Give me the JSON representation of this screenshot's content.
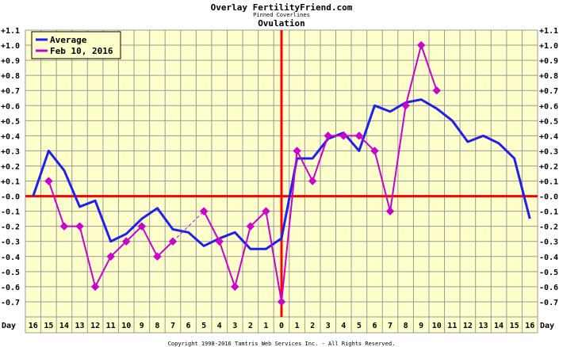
{
  "chart_data": {
    "type": "line",
    "title": "Overlay FertilityFriend.com",
    "subtitle": "Pinned Coverlines",
    "subtitle2": "Ovulation",
    "xlabel": "Day",
    "x_tick_labels": [
      "16",
      "15",
      "14",
      "13",
      "12",
      "11",
      "10",
      "9",
      "8",
      "7",
      "6",
      "5",
      "4",
      "3",
      "2",
      "1",
      "0",
      "1",
      "2",
      "3",
      "4",
      "5",
      "6",
      "7",
      "8",
      "9",
      "10",
      "11",
      "12",
      "13",
      "14",
      "15",
      "16"
    ],
    "x": [
      -16,
      -15,
      -14,
      -13,
      -12,
      -11,
      -10,
      -9,
      -8,
      -7,
      -6,
      -5,
      -4,
      -3,
      -2,
      -1,
      0,
      1,
      2,
      3,
      4,
      5,
      6,
      7,
      8,
      9,
      10,
      11,
      12,
      13,
      14,
      15,
      16
    ],
    "y_ticks": [
      "+1.1",
      "+1.0",
      "+0.9",
      "+0.8",
      "+0.7",
      "+0.6",
      "+0.5",
      "+0.4",
      "+0.3",
      "+0.2",
      "+0.1",
      "-0.0",
      "-0.1",
      "-0.2",
      "-0.3",
      "-0.4",
      "-0.5",
      "-0.6",
      "-0.7"
    ],
    "ylim": [
      -0.8,
      1.1
    ],
    "grid": true,
    "legend_position": "top-left",
    "reference_lines": {
      "horizontal": 0.0,
      "vertical": 0,
      "color": "#ff0000"
    },
    "series": [
      {
        "name": "Average",
        "color": "#2020ee",
        "markers": false,
        "values": [
          0.0,
          0.3,
          0.17,
          -0.07,
          -0.03,
          -0.3,
          -0.25,
          -0.15,
          -0.08,
          -0.22,
          -0.24,
          -0.33,
          -0.28,
          -0.24,
          -0.35,
          -0.35,
          -0.28,
          0.25,
          0.25,
          0.38,
          0.42,
          0.3,
          0.6,
          0.56,
          0.62,
          0.64,
          0.58,
          0.5,
          0.36,
          0.4,
          0.35,
          0.25,
          -0.15
        ]
      },
      {
        "name": "Feb 10, 2016",
        "color": "#cc00cc",
        "markers": true,
        "dashed_gaps": true,
        "values": [
          null,
          0.1,
          -0.2,
          -0.2,
          -0.6,
          -0.4,
          -0.3,
          -0.2,
          -0.4,
          -0.3,
          null,
          -0.1,
          -0.3,
          -0.6,
          -0.2,
          -0.1,
          -0.7,
          0.3,
          0.1,
          0.4,
          0.4,
          0.4,
          0.3,
          -0.1,
          0.6,
          1.0,
          0.7,
          null,
          null,
          null,
          null,
          null,
          null
        ]
      }
    ]
  },
  "footer": {
    "copyright": "Copyright 1998-2016 Tamtris Web Services Inc. - All Rights Reserved."
  }
}
